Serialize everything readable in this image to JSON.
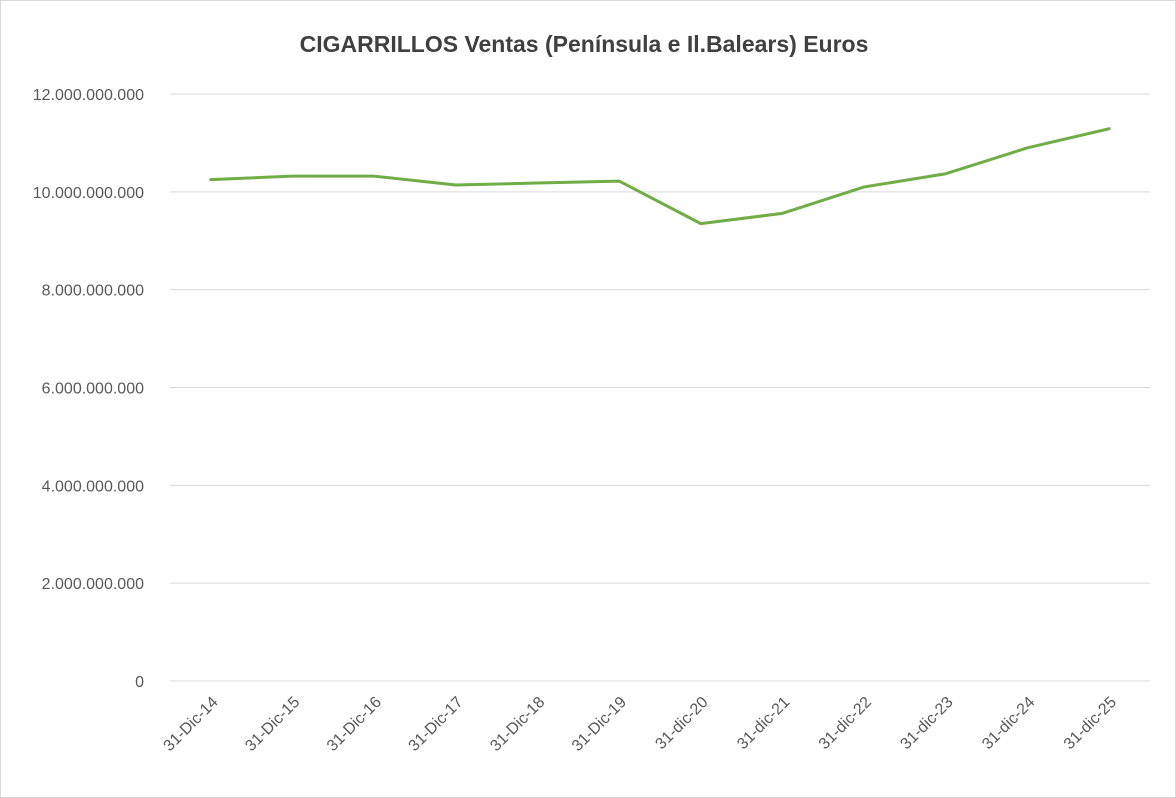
{
  "chart_data": {
    "type": "line",
    "title": "CIGARRILLOS Ventas (Península e Il.Balears) Euros",
    "categories": [
      "31-Dic-14",
      "31-Dic-15",
      "31-Dic-16",
      "31-Dic-17",
      "31-Dic-18",
      "31-Dic-19",
      "31-dic-20",
      "31-dic-21",
      "31-dic-22",
      "31-dic-23",
      "31-dic-24",
      "31-dic-25"
    ],
    "series": [
      {
        "name": "Ventas",
        "color": "#70ad47",
        "values": [
          10250000000,
          10320000000,
          10320000000,
          10140000000,
          10180000000,
          10220000000,
          9350000000,
          9560000000,
          10100000000,
          10370000000,
          10900000000,
          11290000000
        ]
      }
    ],
    "ylim": [
      0,
      12000000000
    ],
    "yticks": [
      0,
      {
        "value": 2000000000,
        "label": "2.000.000.000"
      },
      {
        "value": 4000000000,
        "label": "4.000.000.000"
      },
      {
        "value": 6000000000,
        "label": "6.000.000.000"
      },
      {
        "value": 8000000000,
        "label": "8.000.000.000"
      },
      {
        "value": 10000000000,
        "label": "10.000.000.000"
      },
      {
        "value": 12000000000,
        "label": "12.000.000.000"
      }
    ],
    "grid": true
  }
}
